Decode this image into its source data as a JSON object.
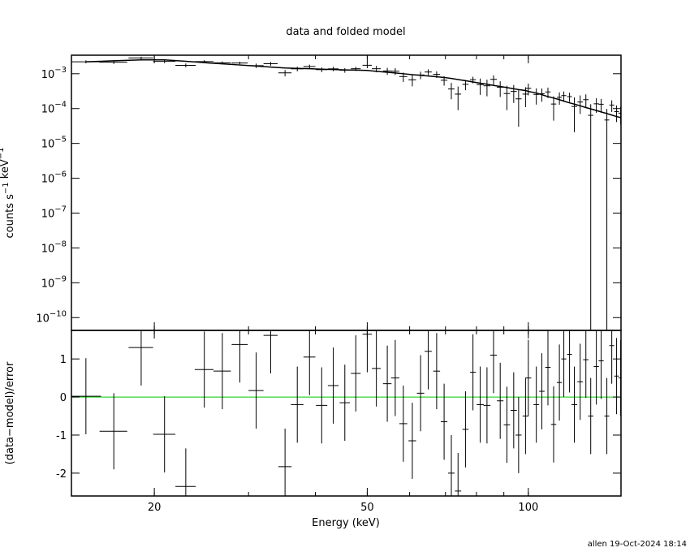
{
  "chart_data": [
    {
      "type": "errorbar",
      "title": "data and folded model",
      "ylabel_parts": [
        {
          "text": "counts s",
          "sup": "−1"
        },
        {
          "text": " keV",
          "sup": "−1"
        }
      ],
      "log_x": true,
      "log_y": true,
      "xlim": [
        14,
        149
      ],
      "ylim": [
        4.3e-11,
        0.0034
      ],
      "xticks": [
        20,
        50,
        100
      ],
      "xminor": [
        20,
        30,
        40,
        50,
        60,
        70,
        80,
        90,
        100
      ],
      "yticks": [
        {
          "value": 1e-10,
          "label": "10",
          "exponent": "−10"
        },
        {
          "value": 1e-09,
          "label": "10",
          "exponent": "−9"
        },
        {
          "value": 1e-08,
          "label": "10",
          "exponent": "−8"
        },
        {
          "value": 1e-07,
          "label": "10",
          "exponent": "−7"
        },
        {
          "value": 1e-06,
          "label": "10",
          "exponent": "−6"
        },
        {
          "value": 1e-05,
          "label": "10",
          "exponent": "−5"
        },
        {
          "value": 0.0001,
          "label": "10",
          "exponent": "−4"
        },
        {
          "value": 0.001,
          "label": "10",
          "exponent": "−3"
        }
      ],
      "color": "#000000",
      "model_color": "#000000",
      "x": [
        14.9,
        16.8,
        18.9,
        20.9,
        22.9,
        24.8,
        26.8,
        28.9,
        31.0,
        33.0,
        35.1,
        37.0,
        39.0,
        41.1,
        43.2,
        45.4,
        47.6,
        50.0,
        52.0,
        54.5,
        56.4,
        58.4,
        60.7,
        62.9,
        65.0,
        67.4,
        69.6,
        71.8,
        73.9,
        76.3,
        78.8,
        81.3,
        83.7,
        86.1,
        88.6,
        91.2,
        93.9,
        95.9,
        98.8,
        100.0,
        103.5,
        106.0,
        108.8,
        111.5,
        114.3,
        116.5,
        119.4,
        121.9,
        125.0,
        128.1,
        130.8,
        134.0,
        136.8,
        140.2,
        143.2,
        146.2,
        148.8
      ],
      "xerr": [
        1.0,
        1.0,
        1.0,
        1.0,
        1.0,
        1.0,
        1.0,
        1.0,
        1.0,
        1.0,
        1.0,
        1.0,
        1.0,
        1.0,
        1.0,
        1.0,
        1.0,
        1.0,
        1.0,
        1.0,
        1.0,
        1.0,
        1.0,
        1.0,
        1.0,
        1.0,
        1.0,
        1.0,
        1.0,
        1.0,
        1.0,
        1.25,
        1.25,
        1.25,
        1.25,
        1.25,
        1.25,
        1.25,
        1.25,
        1.25,
        1.25,
        1.25,
        1.25,
        1.25,
        1.25,
        1.25,
        1.25,
        1.5,
        1.5,
        1.5,
        1.5,
        1.5,
        1.5,
        1.5,
        1.5,
        1.5,
        1.5
      ],
      "values": [
        0.0022,
        0.00214,
        0.00283,
        0.00226,
        0.00174,
        0.00223,
        0.00205,
        0.00203,
        0.0017,
        0.00193,
        0.00106,
        0.00138,
        0.00161,
        0.00131,
        0.00138,
        0.00126,
        0.00139,
        0.00175,
        0.00139,
        0.0012,
        0.00118,
        0.00083,
        0.00067,
        0.00092,
        0.00112,
        0.00096,
        0.00065,
        0.000365,
        0.00026,
        0.000496,
        0.000674,
        0.000487,
        0.00045,
        0.00069,
        0.00041,
        0.00027,
        0.00031,
        0.00019,
        0.00026,
        0.00038,
        0.000255,
        0.000267,
        0.0003,
        0.000135,
        0.00021,
        0.000236,
        0.00022,
        0.000115,
        0.000154,
        0.00018,
        6.4e-05,
        0.000137,
        0.000133,
        4.7e-05,
        0.000126,
        8.2e-05,
        7.4e-05
      ],
      "errors": [
        0.00022,
        0.000235,
        0.00025,
        0.00025,
        0.000227,
        0.000208,
        0.000192,
        0.000178,
        0.00025,
        0.00023,
        0.00022,
        0.00021,
        0.00021,
        0.0002,
        0.0002,
        0.00019,
        0.00019,
        0.00031,
        0.00029,
        0.000275,
        0.00026,
        0.00025,
        0.000235,
        0.000225,
        0.000215,
        0.000205,
        0.000195,
        0.00018,
        0.00017,
        0.00016,
        0.000145,
        0.00024,
        0.000225,
        0.00021,
        0.000195,
        0.00018,
        0.000165,
        0.00016,
        0.00015,
        0.00014,
        0.000125,
        0.00011,
        0.0001,
        9e-05,
        8.1e-05,
        7.3e-05,
        6.6e-05,
        9.4e-05,
        8.4e-05,
        7.5e-05,
        6.9e-05,
        6.2e-05,
        5.6e-05,
        5e-05,
        4.6e-05,
        4.1e-05,
        3.9e-05
      ],
      "model": [
        0.0022,
        0.00235,
        0.0025,
        0.0025,
        0.00227,
        0.00208,
        0.00192,
        0.00178,
        0.00166,
        0.00155,
        0.00146,
        0.00142,
        0.00139,
        0.00135,
        0.00132,
        0.00129,
        0.00127,
        0.00124,
        0.00117,
        0.0011,
        0.00105,
        0.001,
        0.00094,
        0.0009,
        0.00086,
        0.00082,
        0.00078,
        0.00073,
        0.00068,
        0.00063,
        0.00058,
        0.000535,
        0.0005,
        0.00046,
        0.00043,
        0.0004,
        0.00037,
        0.00035,
        0.00033,
        0.00031,
        0.00028,
        0.00025,
        0.00022,
        0.0002,
        0.00018,
        0.000163,
        0.000146,
        0.000134,
        0.00012,
        0.000107,
        9.8e-05,
        8.8e-05,
        8e-05,
        7.2e-05,
        6.5e-05,
        5.9e-05,
        5.5e-05
      ]
    },
    {
      "type": "errorbar",
      "xlabel": "Energy (keV)",
      "ylabel": "(data−model)/error",
      "log_x": true,
      "log_y": false,
      "xlim": [
        14,
        149
      ],
      "ylim": [
        -2.6,
        1.75
      ],
      "xticks": [
        20,
        50,
        100
      ],
      "xminor": [
        20,
        30,
        40,
        50,
        60,
        70,
        80,
        90,
        100
      ],
      "yticks": [
        -2,
        -1,
        0,
        1
      ],
      "color": "#000000",
      "reference": 0,
      "reference_color": "#00cc00",
      "x": [
        14.9,
        16.8,
        18.9,
        20.9,
        22.9,
        24.8,
        26.8,
        28.9,
        31.0,
        33.0,
        35.1,
        37.0,
        39.0,
        41.1,
        43.2,
        45.4,
        47.6,
        50.0,
        52.0,
        54.5,
        56.4,
        58.4,
        60.7,
        62.9,
        65.0,
        67.4,
        69.6,
        71.8,
        73.9,
        76.3,
        78.8,
        81.3,
        83.7,
        86.1,
        88.6,
        91.2,
        93.9,
        95.9,
        98.8,
        100.0,
        103.5,
        106.0,
        108.8,
        111.5,
        114.3,
        116.5,
        119.4,
        121.9,
        125.0,
        128.1,
        130.8,
        134.0,
        136.8,
        140.2,
        143.2,
        146.2,
        148.8
      ],
      "xerr": [
        1.0,
        1.0,
        1.0,
        1.0,
        1.0,
        1.0,
        1.0,
        1.0,
        1.0,
        1.0,
        1.0,
        1.0,
        1.0,
        1.0,
        1.0,
        1.0,
        1.0,
        1.0,
        1.0,
        1.0,
        1.0,
        1.0,
        1.0,
        1.0,
        1.0,
        1.0,
        1.0,
        1.0,
        1.0,
        1.0,
        1.0,
        1.25,
        1.25,
        1.25,
        1.25,
        1.25,
        1.25,
        1.25,
        1.25,
        1.25,
        1.25,
        1.25,
        1.25,
        1.25,
        1.25,
        1.25,
        1.25,
        1.5,
        1.5,
        1.5,
        1.5,
        1.5,
        1.5,
        1.5,
        1.5,
        1.5,
        1.5
      ],
      "values": [
        0.02,
        -0.9,
        1.3,
        -0.98,
        -2.35,
        0.72,
        0.68,
        1.38,
        0.17,
        1.62,
        -1.83,
        -0.2,
        1.05,
        -0.22,
        0.3,
        -0.15,
        0.62,
        1.65,
        0.75,
        0.35,
        0.5,
        -0.7,
        -1.15,
        0.1,
        1.2,
        0.68,
        -0.65,
        -2.0,
        -2.47,
        -0.85,
        0.65,
        -0.2,
        -0.22,
        1.1,
        -0.1,
        -0.73,
        -0.35,
        -1.0,
        -0.5,
        0.5,
        -0.2,
        0.15,
        0.78,
        -0.72,
        0.38,
        1.0,
        1.12,
        -0.2,
        0.4,
        0.98,
        -0.5,
        0.8,
        0.95,
        -0.5,
        1.35,
        0.55,
        0.5
      ],
      "errors": [
        1,
        1,
        1,
        1,
        1,
        1,
        1,
        1,
        1,
        1,
        1,
        1,
        1,
        1,
        1,
        1,
        1,
        1,
        1,
        1,
        1,
        1,
        1,
        1,
        1,
        1,
        1,
        1,
        1,
        1,
        1,
        1,
        1,
        1,
        1,
        1,
        1,
        1,
        1,
        1,
        1,
        1,
        1,
        1,
        1,
        1,
        1,
        1,
        1,
        1,
        1,
        1,
        1,
        1,
        1,
        1,
        1
      ]
    }
  ],
  "footer": "allen 19-Oct-2024 18:14"
}
